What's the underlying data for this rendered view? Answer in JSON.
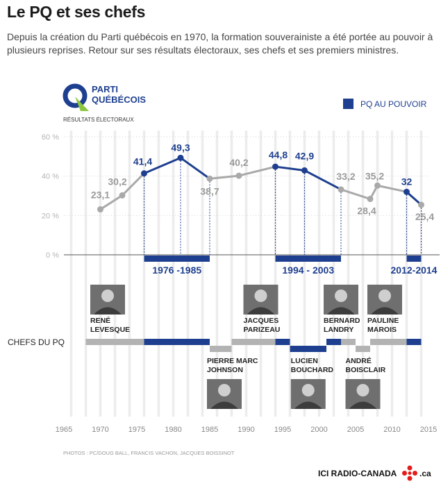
{
  "header": {
    "title": "Le PQ et ses chefs",
    "intro": "Depuis la création du Parti québécois en 1970, la formation souverainiste a été portée au pouvoir à plusieurs reprises. Retour sur ses résultats électoraux, ses chefs et ses premiers ministres."
  },
  "logo": {
    "line1": "PARTI",
    "line2": "QUÉBÉCOIS"
  },
  "section_label": "RÉSULTATS ÉLECTORAUX",
  "legend_label": "PQ AU POUVOIR",
  "chefs_label": "CHEFS DU PQ",
  "credits": "PHOTOS : PC/DOUG BALL, FRANCIS VACHON, JACQUES BOISSINOT",
  "brand": {
    "name": "ICI RADIO-CANADA",
    "suffix": ".ca"
  },
  "colors": {
    "blue": "#1e3f8f",
    "gray": "#a9a9a9",
    "bar_gray": "#b3b3b3",
    "grid": "#ececec"
  },
  "chart_data": {
    "type": "line",
    "x_range": [
      1965,
      2015
    ],
    "x_ticks": [
      "1965",
      "1970",
      "1975",
      "1980",
      "1985",
      "1990",
      "1995",
      "2000",
      "2005",
      "2010",
      "2015"
    ],
    "ylim": [
      0,
      60
    ],
    "y_ticks": [
      "0 %",
      "20 %",
      "40 %",
      "60 %"
    ],
    "grid": true,
    "points": [
      {
        "year": 1970,
        "value": 23.1,
        "label": "23,1",
        "in_power": false
      },
      {
        "year": 1973,
        "value": 30.2,
        "label": "30,2",
        "in_power": false
      },
      {
        "year": 1976,
        "value": 41.4,
        "label": "41,4",
        "in_power": true
      },
      {
        "year": 1981,
        "value": 49.3,
        "label": "49,3",
        "in_power": true
      },
      {
        "year": 1985,
        "value": 38.7,
        "label": "38,7",
        "in_power": false
      },
      {
        "year": 1989,
        "value": 40.2,
        "label": "40,2",
        "in_power": false
      },
      {
        "year": 1994,
        "value": 44.8,
        "label": "44,8",
        "in_power": true
      },
      {
        "year": 1998,
        "value": 42.9,
        "label": "42,9",
        "in_power": true
      },
      {
        "year": 2003,
        "value": 33.2,
        "label": "33,2",
        "in_power": false
      },
      {
        "year": 2007,
        "value": 28.4,
        "label": "28,4",
        "in_power": false
      },
      {
        "year": 2008,
        "value": 35.2,
        "label": "35,2",
        "in_power": false
      },
      {
        "year": 2012,
        "value": 32,
        "label": "32",
        "in_power": true
      },
      {
        "year": 2014,
        "value": 25.4,
        "label": "25,4",
        "in_power": false
      }
    ],
    "power_periods": [
      {
        "start": 1976,
        "end": 1985,
        "label": "1976 -1985"
      },
      {
        "start": 1994,
        "end": 2003,
        "label": "1994 - 2003"
      },
      {
        "start": 2012,
        "end": 2014,
        "label": "2012-2014"
      }
    ],
    "chefs": [
      {
        "name": [
          "RENÉ",
          "LEVESQUE"
        ],
        "start": 1968,
        "end": 1985,
        "premier": [
          1976,
          1985
        ],
        "side": "top",
        "photo_year": 1971
      },
      {
        "name": [
          "PIERRE MARC",
          "JOHNSON"
        ],
        "start": 1985,
        "end": 1988,
        "premier": [
          1985,
          1985
        ],
        "side": "bottom",
        "photo_year": 1987
      },
      {
        "name": [
          "JACQUES",
          "PARIZEAU"
        ],
        "start": 1988,
        "end": 1996,
        "premier": [
          1994,
          1996
        ],
        "side": "top",
        "photo_year": 1992
      },
      {
        "name": [
          "LUCIEN",
          "BOUCHARD"
        ],
        "start": 1996,
        "end": 2001,
        "premier": [
          1996,
          2001
        ],
        "side": "bottom",
        "photo_year": 1998.5
      },
      {
        "name": [
          "BERNARD",
          "LANDRY"
        ],
        "start": 2001,
        "end": 2005,
        "premier": [
          2001,
          2003
        ],
        "side": "top",
        "photo_year": 2003
      },
      {
        "name": [
          "ANDRÉ",
          "BOISCLAIR"
        ],
        "start": 2005,
        "end": 2007,
        "premier": [
          2005,
          2005
        ],
        "side": "bottom",
        "photo_year": 2006
      },
      {
        "name": [
          "PAULINE",
          "MAROIS"
        ],
        "start": 2007,
        "end": 2014,
        "premier": [
          2012,
          2014
        ],
        "side": "top",
        "photo_year": 2009
      }
    ]
  }
}
